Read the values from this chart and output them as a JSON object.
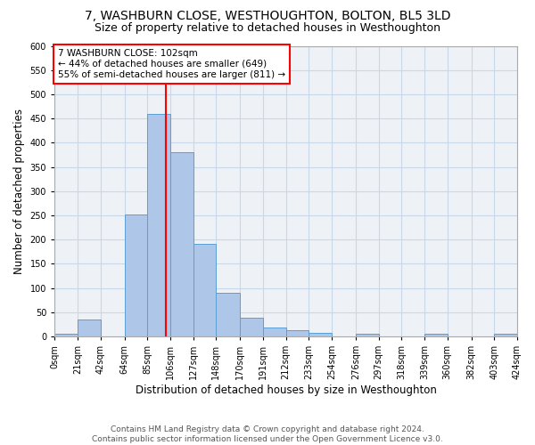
{
  "title": "7, WASHBURN CLOSE, WESTHOUGHTON, BOLTON, BL5 3LD",
  "subtitle": "Size of property relative to detached houses in Westhoughton",
  "xlabel": "Distribution of detached houses by size in Westhoughton",
  "ylabel": "Number of detached properties",
  "bar_color": "#aec6e8",
  "bar_edge_color": "#5a9fd4",
  "grid_color": "#c8d8e8",
  "background_color": "#eef2f7",
  "property_line_color": "red",
  "property_value": 102,
  "annotation_line1": "7 WASHBURN CLOSE: 102sqm",
  "annotation_line2": "← 44% of detached houses are smaller (649)",
  "annotation_line3": "55% of semi-detached houses are larger (811) →",
  "annotation_box_color": "white",
  "annotation_box_edge": "red",
  "bin_edges": [
    0,
    21,
    42,
    64,
    85,
    106,
    127,
    148,
    170,
    191,
    212,
    233,
    254,
    276,
    297,
    318,
    339,
    360,
    382,
    403,
    424
  ],
  "bin_labels": [
    "0sqm",
    "21sqm",
    "42sqm",
    "64sqm",
    "85sqm",
    "106sqm",
    "127sqm",
    "148sqm",
    "170sqm",
    "191sqm",
    "212sqm",
    "233sqm",
    "254sqm",
    "276sqm",
    "297sqm",
    "318sqm",
    "339sqm",
    "360sqm",
    "382sqm",
    "403sqm",
    "424sqm"
  ],
  "bar_heights": [
    5,
    35,
    0,
    252,
    460,
    380,
    191,
    91,
    38,
    19,
    13,
    7,
    0,
    6,
    0,
    0,
    6,
    0,
    0,
    5
  ],
  "ylim": [
    0,
    600
  ],
  "yticks": [
    0,
    50,
    100,
    150,
    200,
    250,
    300,
    350,
    400,
    450,
    500,
    550,
    600
  ],
  "footer_text": "Contains HM Land Registry data © Crown copyright and database right 2024.\nContains public sector information licensed under the Open Government Licence v3.0.",
  "title_fontsize": 10,
  "subtitle_fontsize": 9,
  "xlabel_fontsize": 8.5,
  "ylabel_fontsize": 8.5,
  "tick_fontsize": 7,
  "footer_fontsize": 6.5,
  "annotation_fontsize": 7.5
}
